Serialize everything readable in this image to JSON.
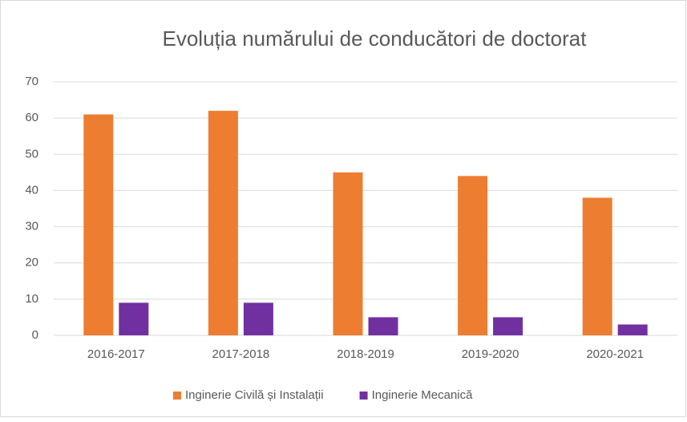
{
  "chart_data": {
    "type": "bar",
    "title": "Evoluția numărului de conducători de doctorat",
    "categories": [
      "2016-2017",
      "2017-2018",
      "2018-2019",
      "2019-2020",
      "2020-2021"
    ],
    "series": [
      {
        "name": "Inginerie Civilă și Instalații",
        "color": "#ed7d31",
        "values": [
          61,
          62,
          45,
          44,
          38
        ]
      },
      {
        "name": "Inginerie Mecanică",
        "color": "#7030a0",
        "values": [
          9,
          9,
          5,
          5,
          3
        ]
      }
    ],
    "ylim": [
      0,
      70
    ],
    "yticks": [
      0,
      10,
      20,
      30,
      40,
      50,
      60,
      70
    ],
    "grid": true,
    "legend": "bottom"
  }
}
